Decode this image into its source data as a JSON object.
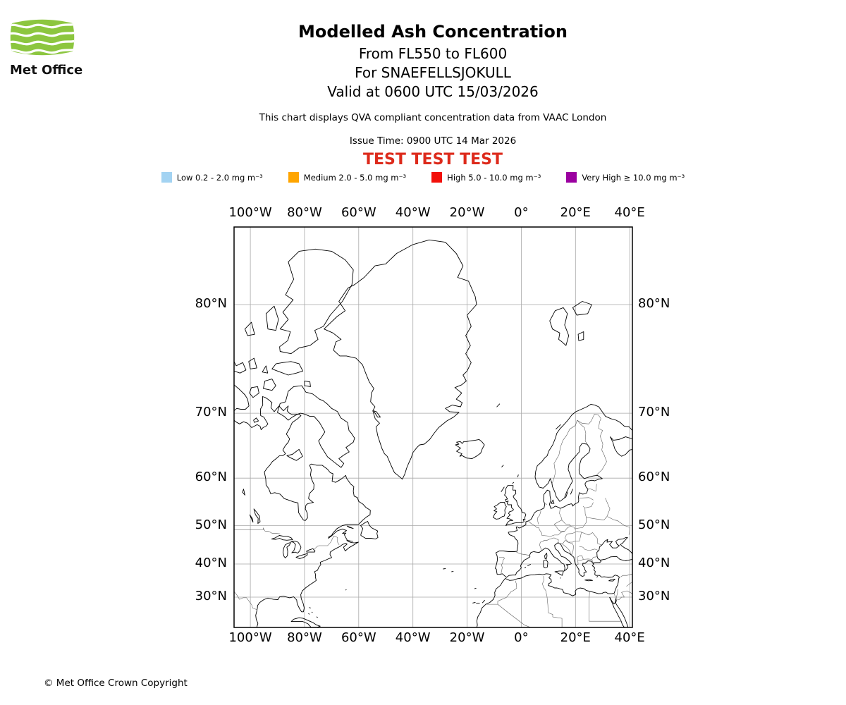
{
  "logo": {
    "brand": "Met Office",
    "color": "#8CC63F"
  },
  "header": {
    "title": "Modelled Ash Concentration",
    "subtitle1": "From FL550 to FL600",
    "subtitle2": "For SNAEFELLSJOKULL",
    "subtitle3": "Valid at 0600 UTC 15/03/2026",
    "note": "This chart displays QVA compliant concentration data from VAAC London",
    "issue_time": "Issue Time: 0900 UTC 14 Mar 2026",
    "test_banner": "TEST TEST TEST",
    "test_banner_color": "#DD2A1B"
  },
  "legend": {
    "items": [
      {
        "name": "low",
        "label": "Low 0.2 - 2.0 mg m⁻³",
        "color": "#A3D3F2"
      },
      {
        "name": "medium",
        "label": "Medium 2.0 - 5.0 mg m⁻³",
        "color": "#FFA500"
      },
      {
        "name": "high",
        "label": "High 5.0 - 10.0 mg m⁻³",
        "color": "#F2100A"
      },
      {
        "name": "very-high",
        "label": "Very High ≥ 10.0 mg m⁻³",
        "color": "#9B00A0"
      }
    ]
  },
  "map": {
    "lon_ticks": [
      {
        "label": "100°W",
        "deg": -100
      },
      {
        "label": "80°W",
        "deg": -80
      },
      {
        "label": "60°W",
        "deg": -60
      },
      {
        "label": "40°W",
        "deg": -40
      },
      {
        "label": "20°W",
        "deg": -20
      },
      {
        "label": "0°",
        "deg": 0
      },
      {
        "label": "20°E",
        "deg": 20
      },
      {
        "label": "40°E",
        "deg": 40
      }
    ],
    "lat_ticks": [
      {
        "label": "80°N",
        "deg": 80
      },
      {
        "label": "70°N",
        "deg": 70
      },
      {
        "label": "60°N",
        "deg": 60
      },
      {
        "label": "50°N",
        "deg": 50
      },
      {
        "label": "40°N",
        "deg": 40
      },
      {
        "label": "30°N",
        "deg": 30
      }
    ]
  },
  "footer": {
    "copyright": "© Met Office Crown Copyright"
  }
}
